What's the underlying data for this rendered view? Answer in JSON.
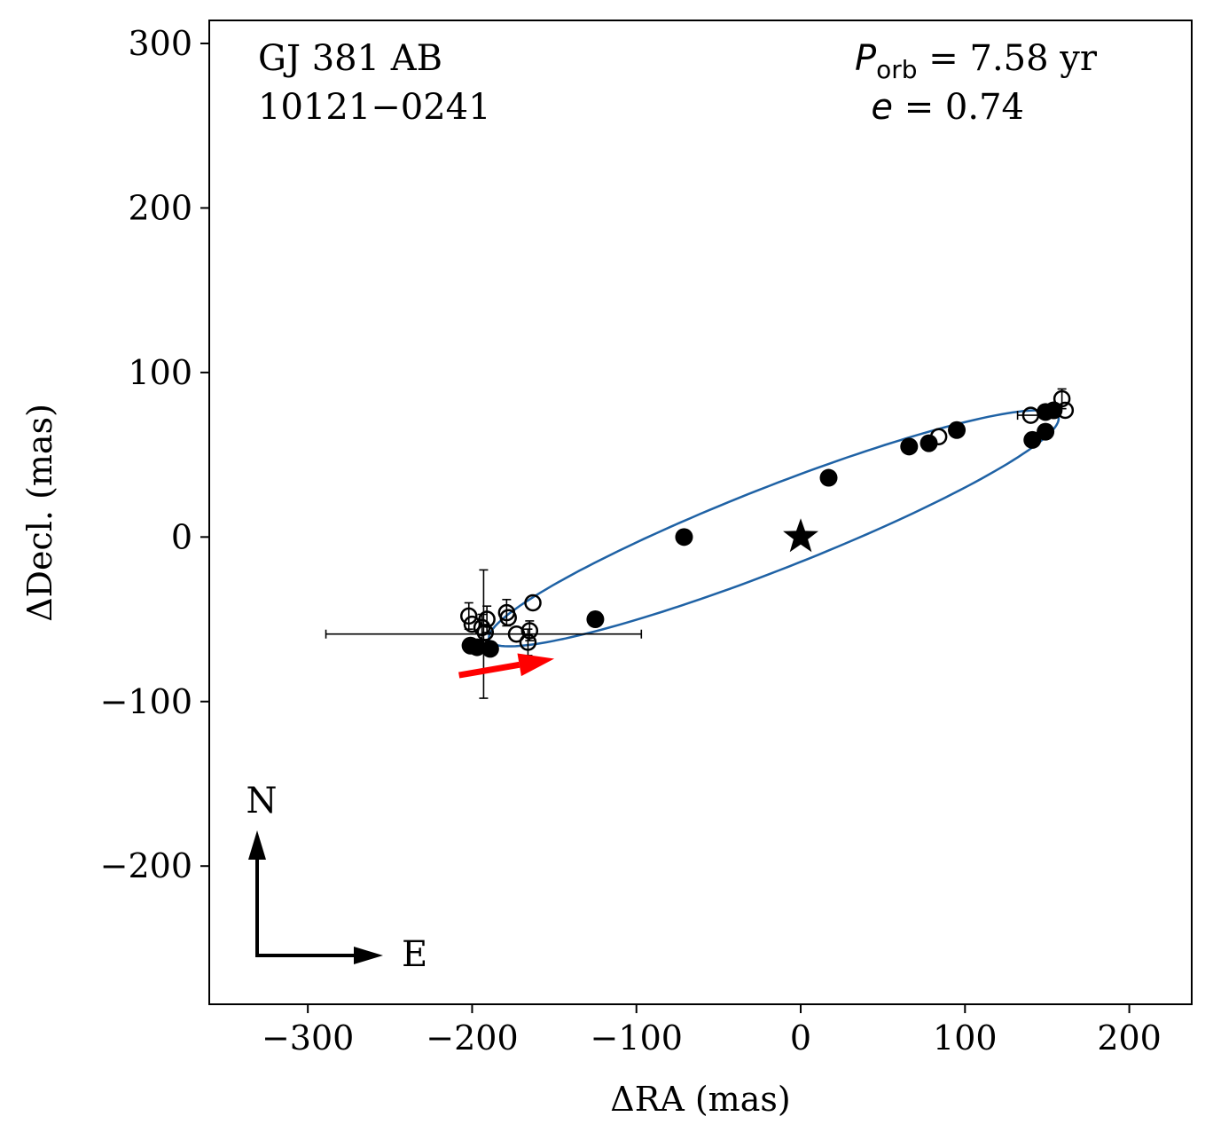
{
  "chart_data": {
    "type": "scatter",
    "title": "",
    "xlabel": "ΔRA  (mas)",
    "ylabel": "ΔDecl.  (mas)",
    "xlim": [
      -360,
      238
    ],
    "ylim": [
      -284,
      314
    ],
    "xticks": [
      -300,
      -200,
      -100,
      0,
      100,
      200
    ],
    "xtick_labels": [
      "−300",
      "−200",
      "−100",
      "0",
      "100",
      "200"
    ],
    "yticks": [
      -200,
      -100,
      0,
      100,
      200,
      300
    ],
    "ytick_labels": [
      "−200",
      "−100",
      "0",
      "100",
      "200",
      "300"
    ],
    "grid": false,
    "annotations": {
      "name": "GJ 381 AB",
      "wds_id": "10121−0241",
      "period_symbol": "P",
      "period_subscript": "orb",
      "period_value": " =  7.58 yr",
      "ecc_symbol": "e",
      "ecc_value": " = 0.74"
    },
    "compass": {
      "north": "N",
      "east": "E"
    },
    "primary": {
      "x": 0,
      "y": 0,
      "marker": "star"
    },
    "orbit": {
      "center": [
        -16.4,
        5.3
      ],
      "semi_major": 186,
      "semi_minor": 25,
      "angle_deg": 21.4,
      "color": "#1f62a5"
    },
    "motion_arrow": {
      "from": [
        -208,
        -84
      ],
      "to": [
        -150,
        -74
      ],
      "color": "#ff0000"
    },
    "series": [
      {
        "name": "filled",
        "marker": "filled-circle",
        "points": [
          {
            "x": 17,
            "y": 36
          },
          {
            "x": -71,
            "y": 0
          },
          {
            "x": 66,
            "y": 55
          },
          {
            "x": 78,
            "y": 57
          },
          {
            "x": 95,
            "y": 65
          },
          {
            "x": 141,
            "y": 59
          },
          {
            "x": 149,
            "y": 64
          },
          {
            "x": 149,
            "y": 76
          },
          {
            "x": 154,
            "y": 77
          },
          {
            "x": -125,
            "y": -50
          },
          {
            "x": -201,
            "y": -66
          },
          {
            "x": -197,
            "y": -67
          },
          {
            "x": -189,
            "y": -68
          }
        ]
      },
      {
        "name": "open",
        "marker": "open-circle",
        "points": [
          {
            "x": 159,
            "y": 84,
            "ey": 6
          },
          {
            "x": 161,
            "y": 77
          },
          {
            "x": 140,
            "y": 74,
            "ex": 8
          },
          {
            "x": 84,
            "y": 61
          },
          {
            "x": -163,
            "y": -40
          },
          {
            "x": -202,
            "y": -48,
            "ey": 8
          },
          {
            "x": -200,
            "y": -53
          },
          {
            "x": -194,
            "y": -55,
            "ey": 8
          },
          {
            "x": -191,
            "y": -50,
            "ey": 8
          },
          {
            "x": -179,
            "y": -46,
            "ey": 8
          },
          {
            "x": -178,
            "y": -49
          },
          {
            "x": -173,
            "y": -59
          },
          {
            "x": -165,
            "y": -57,
            "ey": 6
          },
          {
            "x": -166,
            "y": -64,
            "ey": 8
          },
          {
            "x": -192,
            "y": -58
          }
        ]
      },
      {
        "name": "large-error",
        "marker": "none",
        "points": [
          {
            "x": -193,
            "y": -59,
            "ex": 96,
            "ey": 39
          }
        ]
      }
    ]
  }
}
